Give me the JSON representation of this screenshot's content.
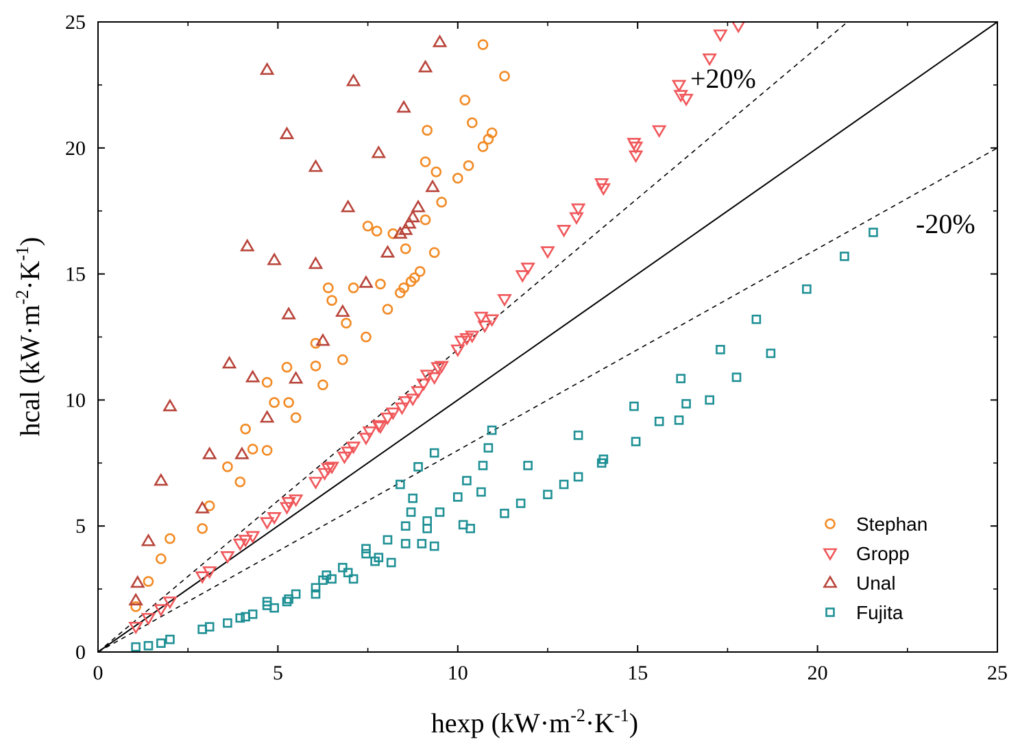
{
  "chart_data": {
    "type": "scatter",
    "title": "",
    "xlabel": {
      "base": "hexp (kW·m",
      "sup1": "-2",
      "mid": "·K",
      "sup2": "-1",
      "end": ")"
    },
    "ylabel": {
      "base": "hcal (kW·m",
      "sup1": "-2",
      "mid": "·K",
      "sup2": "-1",
      "end": ")"
    },
    "xlim": [
      0,
      25
    ],
    "ylim": [
      0,
      25
    ],
    "xticks": [
      0,
      5,
      10,
      15,
      20,
      25
    ],
    "yticks": [
      0,
      5,
      10,
      15,
      20,
      25
    ],
    "xtick_labels": [
      "0",
      "5",
      "10",
      "15",
      "20",
      "25"
    ],
    "ytick_labels": [
      "0",
      "5",
      "10",
      "15",
      "20",
      "25"
    ],
    "legend_position": "bottom-right",
    "reference_lines": [
      {
        "name": "parity",
        "slope": 1.0,
        "style": "solid",
        "label": ""
      },
      {
        "name": "plus-20",
        "slope": 1.2,
        "style": "dashed",
        "label": "+20%"
      },
      {
        "name": "minus-20",
        "slope": 0.8,
        "style": "dashed",
        "label": "-20%"
      }
    ],
    "series": [
      {
        "name": "Stephan",
        "marker": "circle",
        "color": "#F28A24",
        "points": [
          [
            1.05,
            1.8
          ],
          [
            1.4,
            2.8
          ],
          [
            1.75,
            3.7
          ],
          [
            2.0,
            4.5
          ],
          [
            2.9,
            4.9
          ],
          [
            3.1,
            5.8
          ],
          [
            3.6,
            7.35
          ],
          [
            3.95,
            6.75
          ],
          [
            4.1,
            8.85
          ],
          [
            4.3,
            8.05
          ],
          [
            4.7,
            8.0
          ],
          [
            4.7,
            10.7
          ],
          [
            4.9,
            9.9
          ],
          [
            5.25,
            11.3
          ],
          [
            5.3,
            9.9
          ],
          [
            5.5,
            9.3
          ],
          [
            6.05,
            12.25
          ],
          [
            6.05,
            11.35
          ],
          [
            6.25,
            10.6
          ],
          [
            6.4,
            14.45
          ],
          [
            6.5,
            13.95
          ],
          [
            6.8,
            11.6
          ],
          [
            6.9,
            13.05
          ],
          [
            7.1,
            14.45
          ],
          [
            7.45,
            12.5
          ],
          [
            7.5,
            16.9
          ],
          [
            7.75,
            16.7
          ],
          [
            7.85,
            14.6
          ],
          [
            8.05,
            13.6
          ],
          [
            8.2,
            16.6
          ],
          [
            8.4,
            14.25
          ],
          [
            8.5,
            14.45
          ],
          [
            8.55,
            16.0
          ],
          [
            8.7,
            14.7
          ],
          [
            8.8,
            14.85
          ],
          [
            8.95,
            15.1
          ],
          [
            9.1,
            17.15
          ],
          [
            9.1,
            19.45
          ],
          [
            9.15,
            20.7
          ],
          [
            9.35,
            15.85
          ],
          [
            9.4,
            19.05
          ],
          [
            9.55,
            17.85
          ],
          [
            10.0,
            18.8
          ],
          [
            10.2,
            21.9
          ],
          [
            10.3,
            19.3
          ],
          [
            10.4,
            21.0
          ],
          [
            10.7,
            20.05
          ],
          [
            10.85,
            20.35
          ],
          [
            10.95,
            20.6
          ],
          [
            10.7,
            24.1
          ],
          [
            11.3,
            22.85
          ]
        ]
      },
      {
        "name": "Gropp",
        "marker": "triangle-down",
        "color": "#F0575A",
        "points": [
          [
            1.05,
            1.0
          ],
          [
            1.4,
            1.35
          ],
          [
            1.75,
            1.7
          ],
          [
            2.0,
            2.0
          ],
          [
            2.9,
            3.0
          ],
          [
            3.1,
            3.2
          ],
          [
            3.6,
            3.8
          ],
          [
            3.95,
            4.3
          ],
          [
            4.1,
            4.45
          ],
          [
            4.3,
            4.6
          ],
          [
            4.7,
            5.15
          ],
          [
            4.9,
            5.35
          ],
          [
            5.25,
            5.75
          ],
          [
            5.3,
            5.95
          ],
          [
            5.5,
            6.05
          ],
          [
            6.05,
            6.75
          ],
          [
            6.3,
            7.1
          ],
          [
            6.4,
            7.3
          ],
          [
            6.5,
            7.35
          ],
          [
            6.85,
            7.75
          ],
          [
            6.95,
            7.95
          ],
          [
            7.1,
            8.15
          ],
          [
            7.45,
            8.5
          ],
          [
            7.55,
            8.75
          ],
          [
            7.8,
            9.0
          ],
          [
            7.85,
            8.95
          ],
          [
            8.05,
            9.3
          ],
          [
            8.2,
            9.5
          ],
          [
            8.45,
            9.7
          ],
          [
            8.55,
            9.95
          ],
          [
            8.75,
            10.05
          ],
          [
            8.9,
            10.35
          ],
          [
            9.05,
            10.65
          ],
          [
            9.15,
            11.0
          ],
          [
            9.35,
            10.9
          ],
          [
            9.45,
            11.3
          ],
          [
            9.55,
            11.35
          ],
          [
            10.0,
            12.0
          ],
          [
            10.1,
            12.35
          ],
          [
            10.25,
            12.45
          ],
          [
            10.4,
            12.55
          ],
          [
            10.65,
            13.3
          ],
          [
            10.75,
            12.95
          ],
          [
            10.95,
            13.2
          ],
          [
            11.3,
            14.0
          ],
          [
            11.8,
            14.95
          ],
          [
            11.95,
            15.25
          ],
          [
            12.5,
            15.9
          ],
          [
            12.95,
            16.75
          ],
          [
            13.3,
            17.25
          ],
          [
            13.35,
            17.6
          ],
          [
            14.0,
            18.6
          ],
          [
            14.05,
            18.4
          ],
          [
            14.9,
            20.2
          ],
          [
            14.95,
            19.7
          ],
          [
            14.95,
            20.05
          ],
          [
            15.6,
            20.7
          ],
          [
            16.15,
            22.5
          ],
          [
            16.2,
            22.1
          ],
          [
            16.35,
            21.95
          ],
          [
            17.0,
            23.55
          ],
          [
            17.3,
            24.5
          ],
          [
            17.8,
            24.85
          ]
        ]
      },
      {
        "name": "Unal",
        "marker": "triangle-up",
        "color": "#B8443A",
        "points": [
          [
            1.05,
            2.05
          ],
          [
            1.1,
            2.75
          ],
          [
            1.4,
            4.4
          ],
          [
            1.75,
            6.8
          ],
          [
            2.0,
            9.75
          ],
          [
            2.9,
            5.7
          ],
          [
            3.1,
            7.85
          ],
          [
            3.65,
            11.45
          ],
          [
            4.0,
            7.85
          ],
          [
            4.15,
            16.1
          ],
          [
            4.3,
            10.9
          ],
          [
            4.7,
            9.3
          ],
          [
            4.7,
            23.1
          ],
          [
            4.9,
            15.55
          ],
          [
            5.25,
            20.55
          ],
          [
            5.3,
            13.4
          ],
          [
            5.5,
            10.85
          ],
          [
            6.05,
            19.25
          ],
          [
            6.05,
            15.4
          ],
          [
            6.25,
            12.35
          ],
          [
            6.8,
            13.5
          ],
          [
            6.95,
            17.65
          ],
          [
            7.1,
            22.65
          ],
          [
            7.45,
            14.65
          ],
          [
            7.8,
            19.8
          ],
          [
            8.05,
            15.85
          ],
          [
            8.4,
            16.6
          ],
          [
            8.5,
            21.6
          ],
          [
            8.55,
            16.75
          ],
          [
            8.65,
            17.0
          ],
          [
            8.75,
            17.25
          ],
          [
            8.9,
            17.65
          ],
          [
            9.1,
            23.2
          ],
          [
            9.3,
            18.45
          ],
          [
            9.5,
            24.2
          ]
        ]
      },
      {
        "name": "Fujita",
        "marker": "square",
        "color": "#1E9095",
        "points": [
          [
            1.05,
            0.2
          ],
          [
            1.4,
            0.25
          ],
          [
            1.75,
            0.35
          ],
          [
            2.0,
            0.5
          ],
          [
            2.9,
            0.9
          ],
          [
            3.1,
            1.0
          ],
          [
            3.6,
            1.15
          ],
          [
            3.95,
            1.35
          ],
          [
            4.1,
            1.4
          ],
          [
            4.3,
            1.5
          ],
          [
            4.7,
            1.85
          ],
          [
            4.7,
            2.0
          ],
          [
            4.9,
            1.75
          ],
          [
            5.25,
            2.0
          ],
          [
            5.3,
            2.1
          ],
          [
            5.5,
            2.3
          ],
          [
            6.05,
            2.3
          ],
          [
            6.05,
            2.55
          ],
          [
            6.25,
            2.85
          ],
          [
            6.35,
            3.05
          ],
          [
            6.5,
            2.9
          ],
          [
            6.8,
            3.35
          ],
          [
            6.95,
            3.15
          ],
          [
            7.1,
            2.9
          ],
          [
            7.45,
            4.1
          ],
          [
            7.45,
            3.9
          ],
          [
            7.7,
            3.6
          ],
          [
            7.8,
            3.75
          ],
          [
            8.05,
            4.45
          ],
          [
            8.15,
            3.55
          ],
          [
            8.4,
            6.65
          ],
          [
            8.55,
            5.0
          ],
          [
            8.55,
            4.3
          ],
          [
            8.7,
            5.55
          ],
          [
            8.75,
            6.1
          ],
          [
            8.9,
            7.35
          ],
          [
            9.0,
            4.3
          ],
          [
            9.15,
            4.9
          ],
          [
            9.15,
            5.2
          ],
          [
            9.35,
            7.9
          ],
          [
            9.35,
            4.2
          ],
          [
            9.5,
            5.55
          ],
          [
            10.0,
            6.15
          ],
          [
            10.15,
            5.05
          ],
          [
            10.25,
            6.8
          ],
          [
            10.35,
            4.9
          ],
          [
            10.65,
            6.35
          ],
          [
            10.7,
            7.4
          ],
          [
            10.85,
            8.1
          ],
          [
            10.95,
            8.8
          ],
          [
            11.3,
            5.5
          ],
          [
            11.75,
            5.9
          ],
          [
            11.95,
            7.4
          ],
          [
            12.5,
            6.25
          ],
          [
            12.95,
            6.65
          ],
          [
            13.35,
            6.95
          ],
          [
            13.35,
            8.6
          ],
          [
            14.0,
            7.5
          ],
          [
            14.05,
            7.65
          ],
          [
            14.9,
            9.75
          ],
          [
            14.95,
            8.35
          ],
          [
            15.6,
            9.15
          ],
          [
            16.15,
            9.2
          ],
          [
            16.2,
            10.85
          ],
          [
            16.35,
            9.85
          ],
          [
            17.0,
            10.0
          ],
          [
            17.3,
            12.0
          ],
          [
            17.75,
            10.9
          ],
          [
            18.3,
            13.2
          ],
          [
            18.7,
            11.85
          ],
          [
            19.7,
            14.4
          ],
          [
            20.75,
            15.7
          ],
          [
            21.55,
            16.65
          ]
        ]
      }
    ]
  }
}
